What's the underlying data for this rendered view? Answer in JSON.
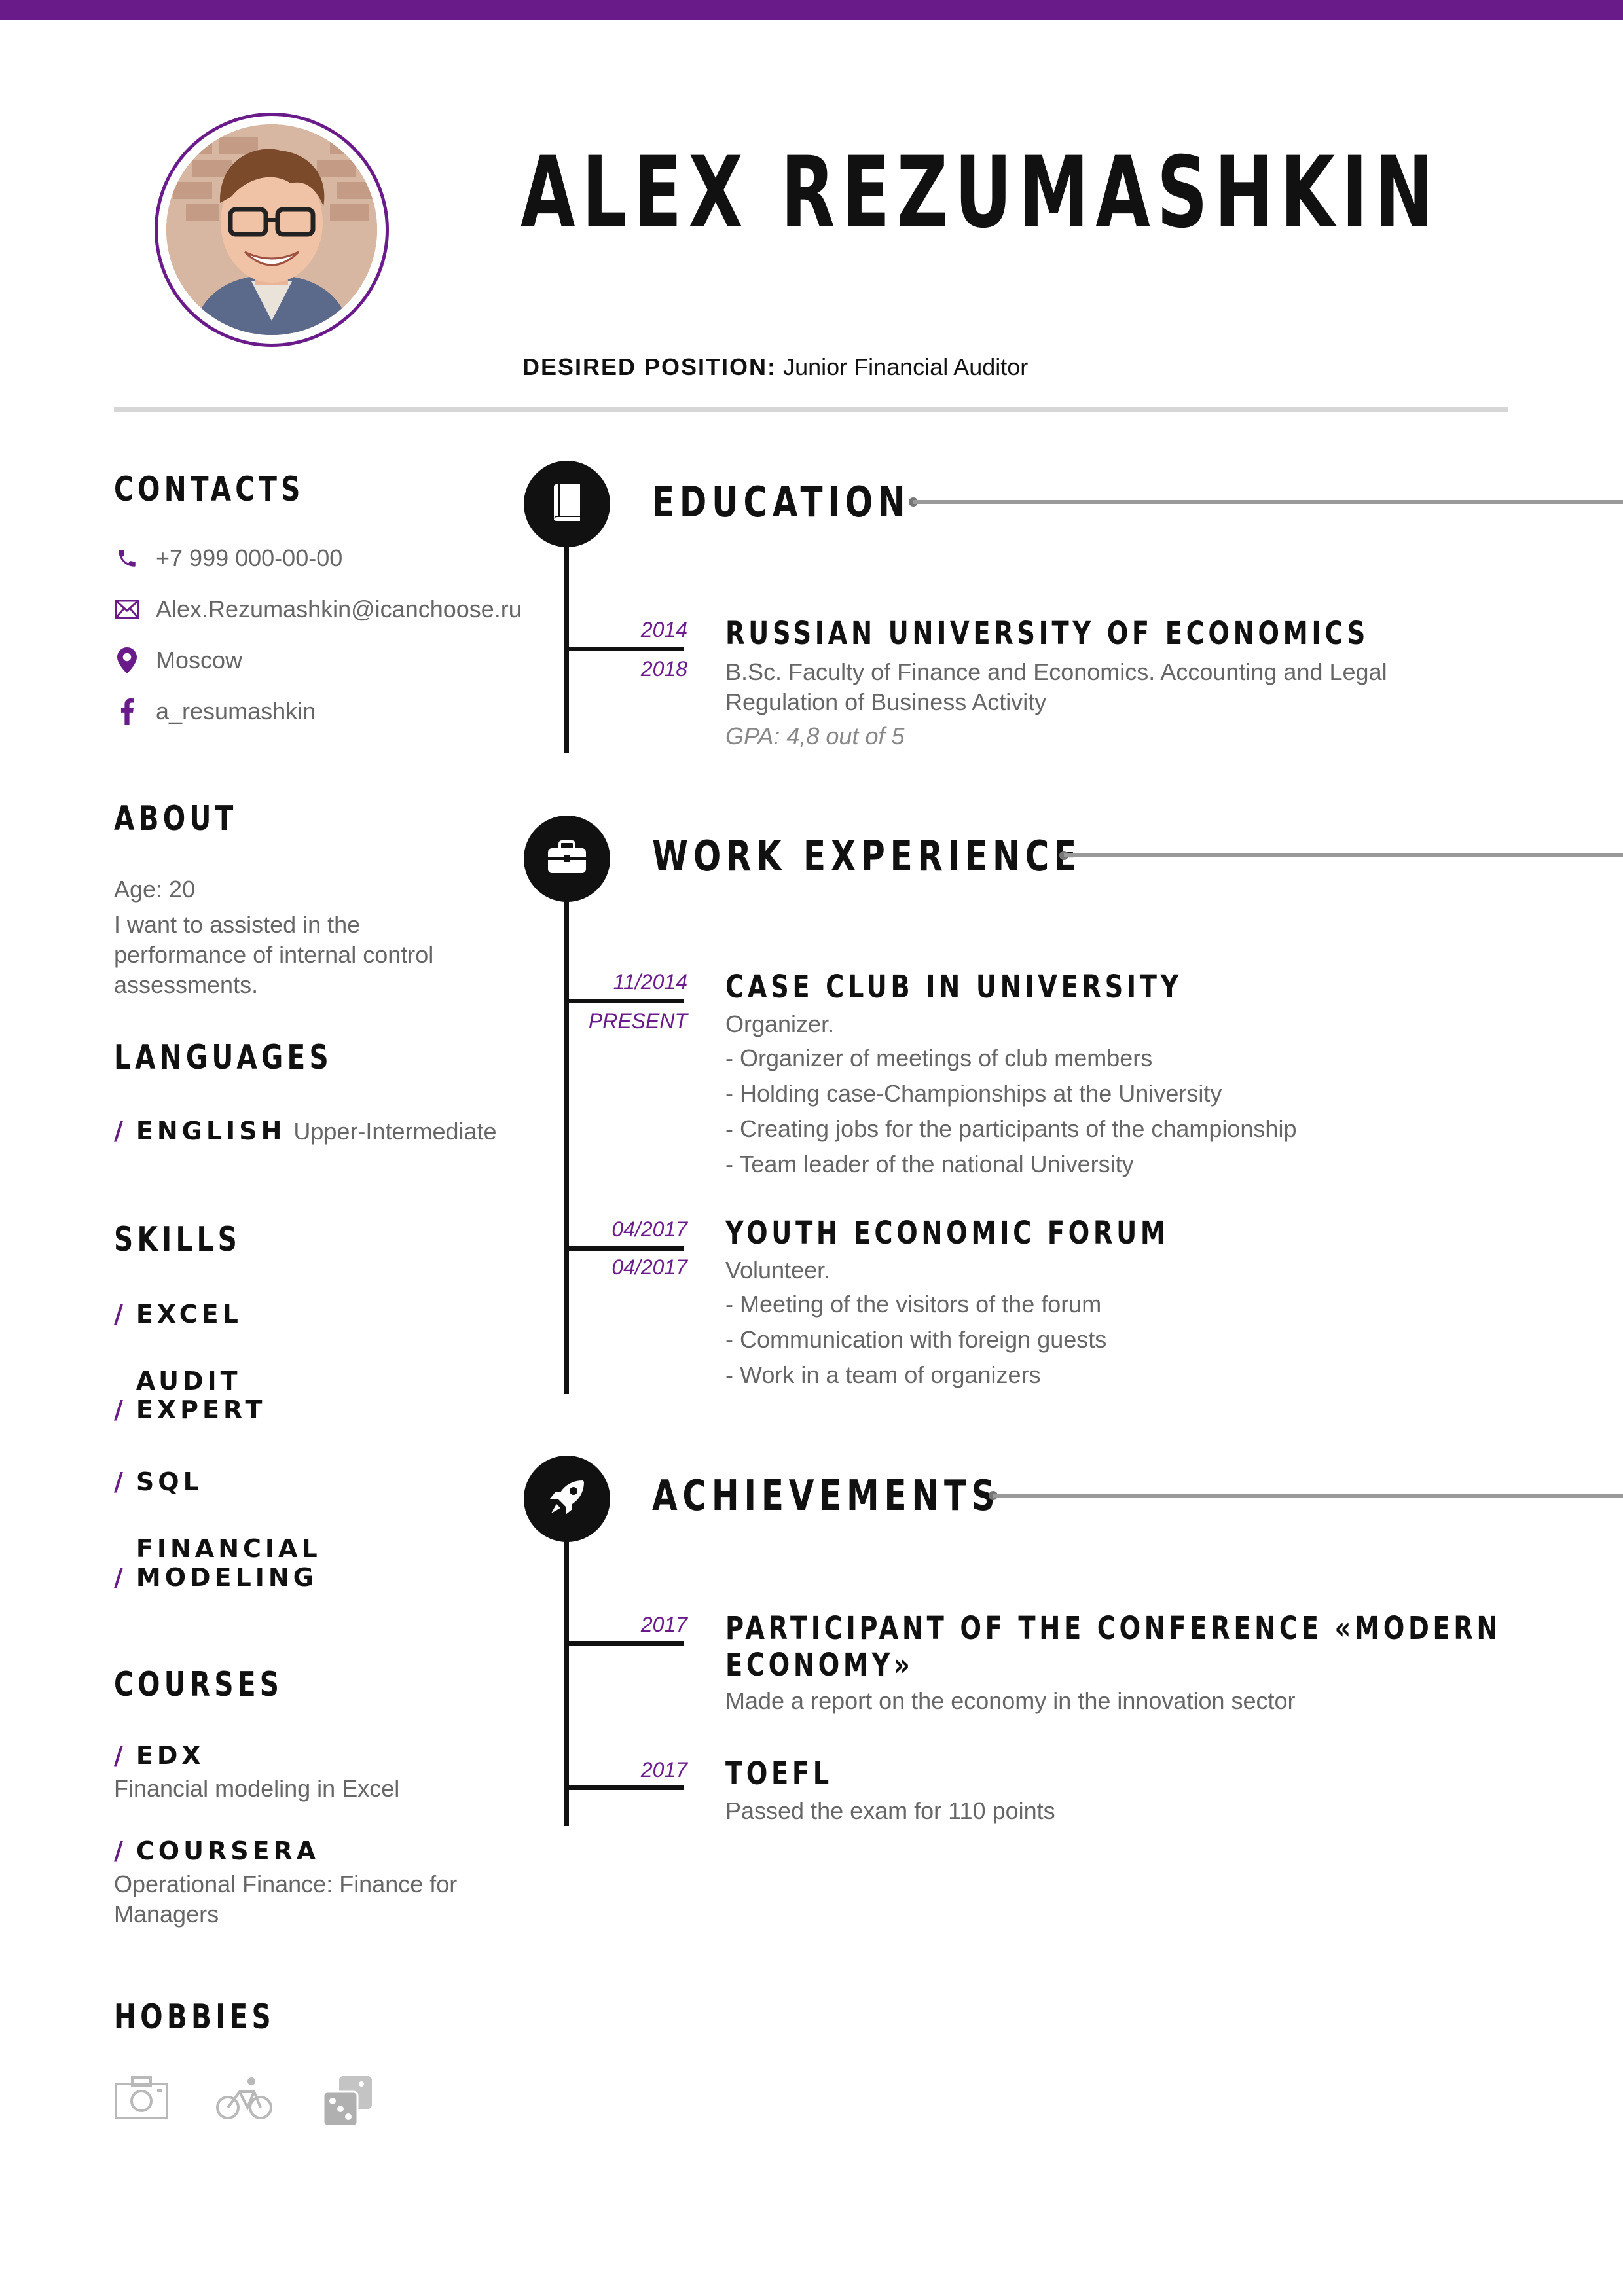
{
  "header": {
    "name": "ALEX REZUMASHKIN",
    "desired_label": "DESIRED POSITION:",
    "desired_value": "Junior Financial Auditor"
  },
  "colors": {
    "accent": "#6a1b8a",
    "text": "#111111",
    "muted": "#666666",
    "rule": "#d6d6d6"
  },
  "contacts": {
    "title": "CONTACTS",
    "items": [
      {
        "icon": "phone-icon",
        "text": "+7 999 000-00-00"
      },
      {
        "icon": "envelope-icon",
        "text": "Alex.Rezumashkin@icanchoose.ru"
      },
      {
        "icon": "location-pin-icon",
        "text": "Moscow"
      },
      {
        "icon": "facebook-icon",
        "text": "a_resumashkin"
      }
    ]
  },
  "about": {
    "title": "ABOUT",
    "age": "Age: 20",
    "text": "I want to assisted in the performance of internal control assessments."
  },
  "languages": {
    "title": "LANGUAGES",
    "items": [
      {
        "name": "ENGLISH",
        "level": "Upper-Intermediate"
      }
    ]
  },
  "skills": {
    "title": "SKILLS",
    "items": [
      "EXCEL",
      "AUDIT",
      "EXPERT",
      "SQL",
      "FINANCIAL",
      "MODELING"
    ]
  },
  "courses": {
    "title": "COURSES",
    "items": [
      {
        "provider": "EDX",
        "course": "Financial modeling in Excel"
      },
      {
        "provider": "COURSERA",
        "course": "Operational Finance: Finance for Managers"
      }
    ]
  },
  "hobbies": {
    "title": "HOBBIES",
    "icons": [
      "camera-icon",
      "bicycle-icon",
      "dice-icon"
    ]
  },
  "education": {
    "title": "EDUCATION",
    "icon": "book-icon",
    "entries": [
      {
        "start": "2014",
        "end": "2018",
        "title": "RUSSIAN UNIVERSITY OF ECONOMICS",
        "description": "B.Sc. Faculty of Finance and Economics. Accounting and Legal Regulation of Business Activity",
        "gpa": "GPA: 4,8 out of 5"
      }
    ]
  },
  "work": {
    "title": "WORK EXPERIENCE",
    "icon": "briefcase-icon",
    "entries": [
      {
        "start": "11/2014",
        "end": "PRESENT",
        "title": "CASE CLUB IN UNIVERSITY",
        "role": "Organizer.",
        "bullets": [
          "- Organizer of meetings of club members",
          "- Holding case-Championships at the University",
          "- Creating jobs for the participants of the championship",
          "- Team leader of the national University"
        ]
      },
      {
        "start": "04/2017",
        "end": "04/2017",
        "title": "YOUTH ECONOMIC FORUM",
        "role": "Volunteer.",
        "bullets": [
          "- Meeting of the visitors of the forum",
          "- Communication with foreign guests",
          "- Work in a team of organizers"
        ]
      }
    ]
  },
  "achievements": {
    "title": "ACHIEVEMENTS",
    "icon": "rocket-icon",
    "entries": [
      {
        "date": "2017",
        "title": "PARTICIPANT OF THE CONFERENCE «MODERN ECONOMY»",
        "description": "Made a report on the economy in the innovation sector"
      },
      {
        "date": "2017",
        "title": "TOEFL",
        "description": "Passed the exam for 110 points"
      }
    ]
  }
}
